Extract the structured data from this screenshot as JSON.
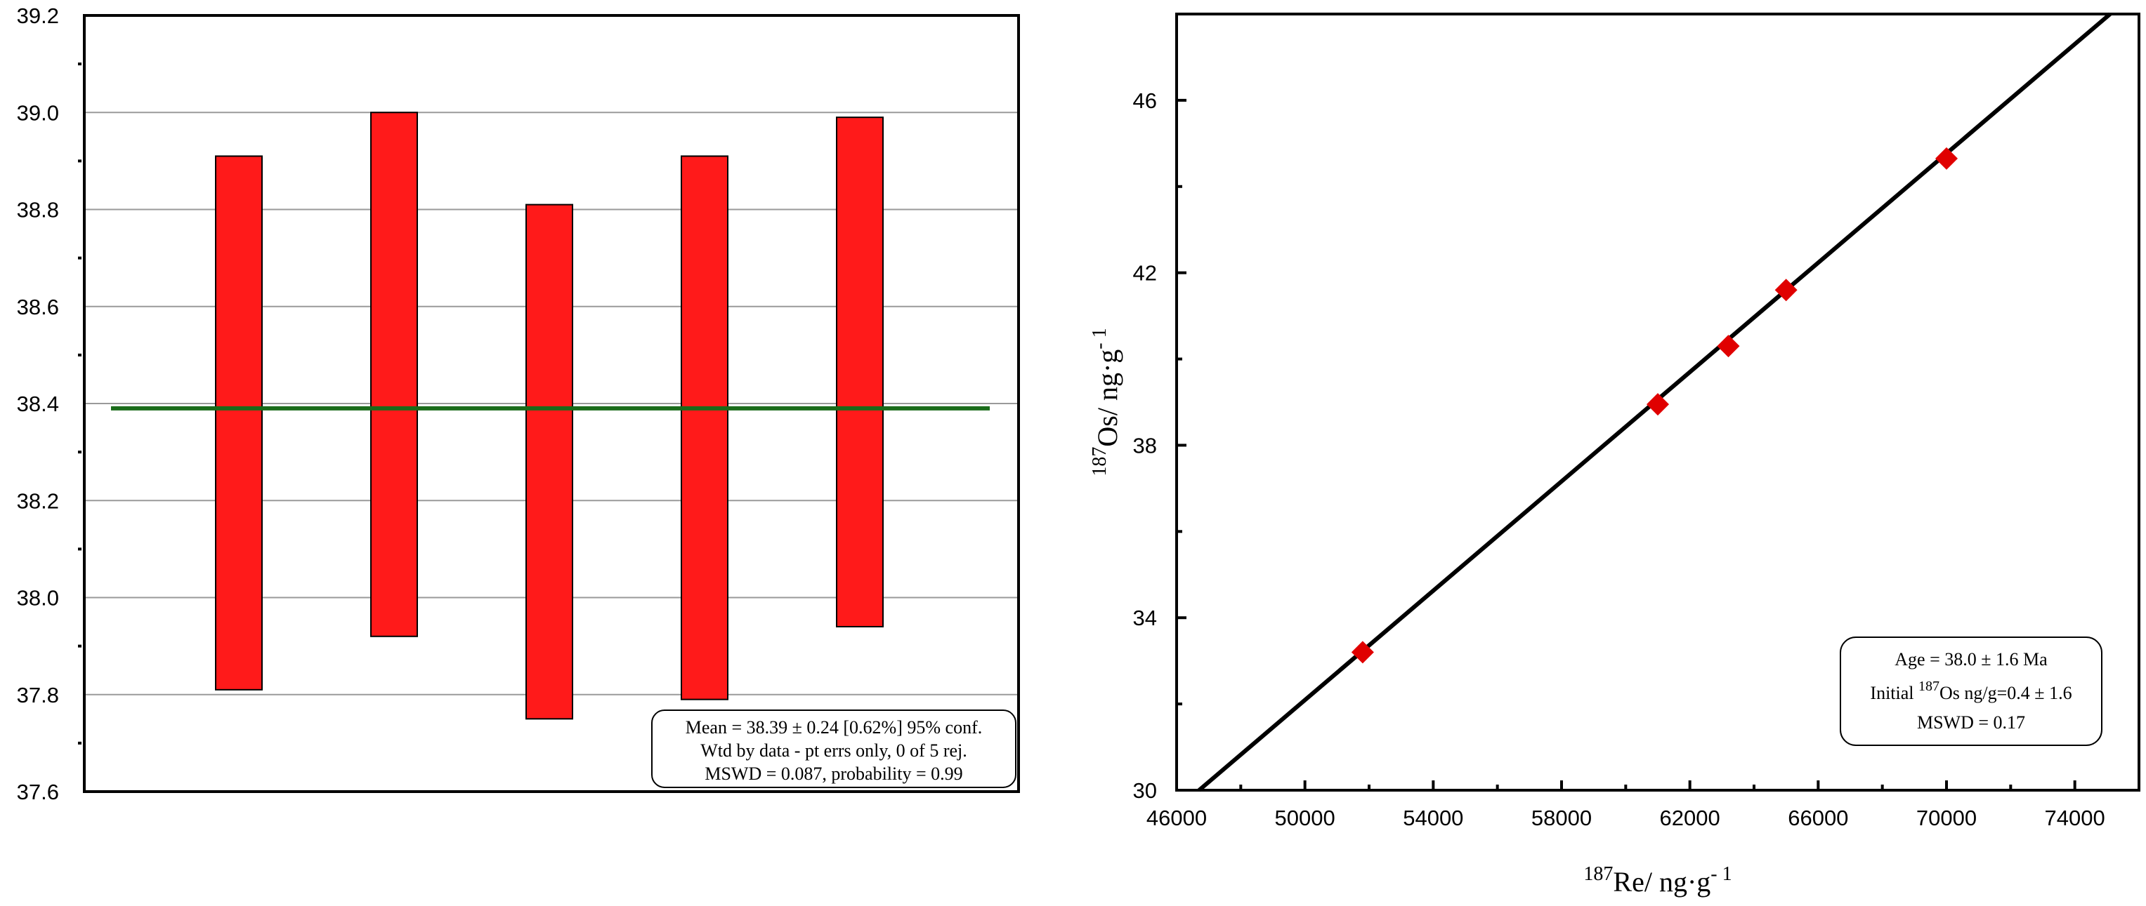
{
  "chart_data": [
    {
      "type": "bar",
      "subtype": "weighted-mean error bars",
      "ylim": [
        37.6,
        39.2
      ],
      "y_ticks": [
        "37.6",
        "37.8",
        "38.0",
        "38.2",
        "38.4",
        "38.6",
        "38.8",
        "39.0",
        "39.2"
      ],
      "grid": "horizontal",
      "series": [
        {
          "low": 37.81,
          "high": 38.91
        },
        {
          "low": 37.92,
          "high": 39.0
        },
        {
          "low": 37.75,
          "high": 38.81
        },
        {
          "low": 37.79,
          "high": 38.91
        },
        {
          "low": 37.94,
          "high": 38.99
        }
      ],
      "mean": 38.39,
      "colors": {
        "bar": "#ff1a1a",
        "mean_line": "#1a6b1a"
      },
      "annotation": [
        "Mean = 38.39 ± 0.24  [0.62%]  95% conf.",
        "Wtd  by data - pt errs only, 0 of 5 rej.",
        "MSWD = 0.087, probability = 0.99"
      ]
    },
    {
      "type": "scatter",
      "subtype": "isochron",
      "xlabel_sup": "187",
      "xlabel_text": "Re/ ng·g",
      "xlabel_exp": "- 1",
      "ylabel_sup": "187",
      "ylabel_text": "Os/ ng·g",
      "ylabel_exp": "- 1",
      "xlim": [
        46000,
        76000
      ],
      "ylim": [
        30,
        48
      ],
      "x_ticks": [
        "46000",
        "50000",
        "54000",
        "58000",
        "62000",
        "66000",
        "70000",
        "74000"
      ],
      "y_ticks": [
        "30",
        "34",
        "38",
        "42",
        "46"
      ],
      "points": [
        {
          "x": 51800,
          "y": 33.2
        },
        {
          "x": 61000,
          "y": 38.95
        },
        {
          "x": 63200,
          "y": 40.3
        },
        {
          "x": 65000,
          "y": 41.6
        },
        {
          "x": 70000,
          "y": 44.65
        }
      ],
      "line": {
        "x": [
          46700,
          75100
        ],
        "y": [
          30,
          48
        ]
      },
      "colors": {
        "point": "#e00000",
        "line": "#000000"
      },
      "annotation": {
        "age": "Age = 38.0 ± 1.6 Ma",
        "initial_pre": "Initial ",
        "initial_sup": "187",
        "initial_post": "Os ng/g=0.4 ± 1.6",
        "mswd": "MSWD = 0.17"
      }
    }
  ]
}
